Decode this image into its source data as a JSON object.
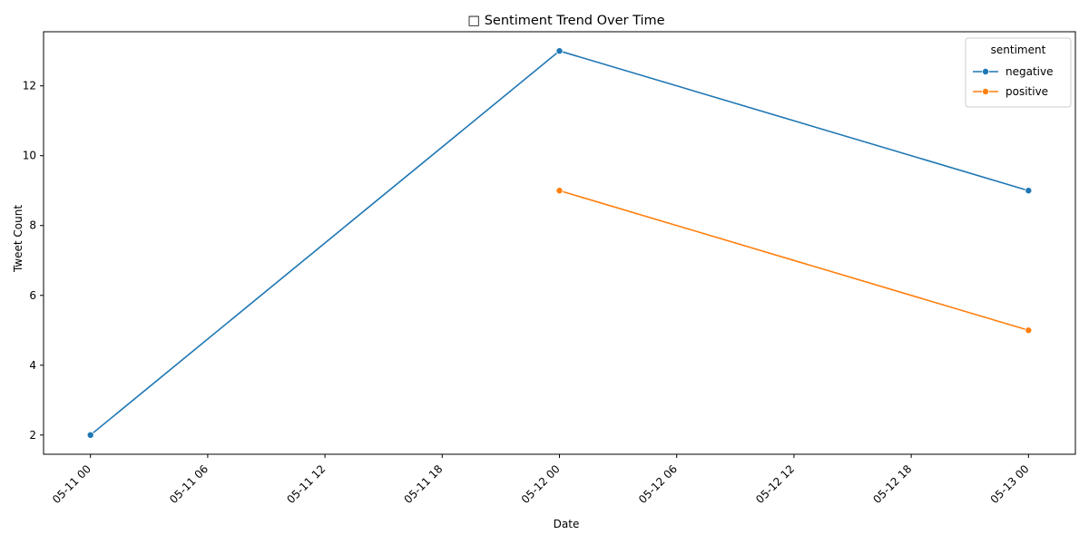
{
  "chart_data": {
    "type": "line",
    "title": "□ Sentiment Trend Over Time",
    "xlabel": "Date",
    "ylabel": "Tweet Count",
    "x_ticks": [
      "05-11 00",
      "05-11 06",
      "05-11 12",
      "05-11 18",
      "05-12 00",
      "05-12 06",
      "05-12 12",
      "05-12 18",
      "05-13 00"
    ],
    "y_ticks": [
      2,
      4,
      6,
      8,
      10,
      12
    ],
    "xlim": [
      "2023-05-10T21:36",
      "2023-05-13T02:24"
    ],
    "ylim": [
      1.45,
      13.55
    ],
    "grid": false,
    "legend": {
      "title": "sentiment",
      "position": "top-right"
    },
    "series": [
      {
        "name": "negative",
        "color": "#1f77b4",
        "points": [
          {
            "x": "2023-05-11T00:00",
            "y": 2
          },
          {
            "x": "2023-05-12T00:00",
            "y": 13
          },
          {
            "x": "2023-05-13T00:00",
            "y": 9
          }
        ]
      },
      {
        "name": "positive",
        "color": "#ff7f0e",
        "points": [
          {
            "x": "2023-05-12T00:00",
            "y": 9
          },
          {
            "x": "2023-05-13T00:00",
            "y": 5
          }
        ]
      }
    ]
  }
}
